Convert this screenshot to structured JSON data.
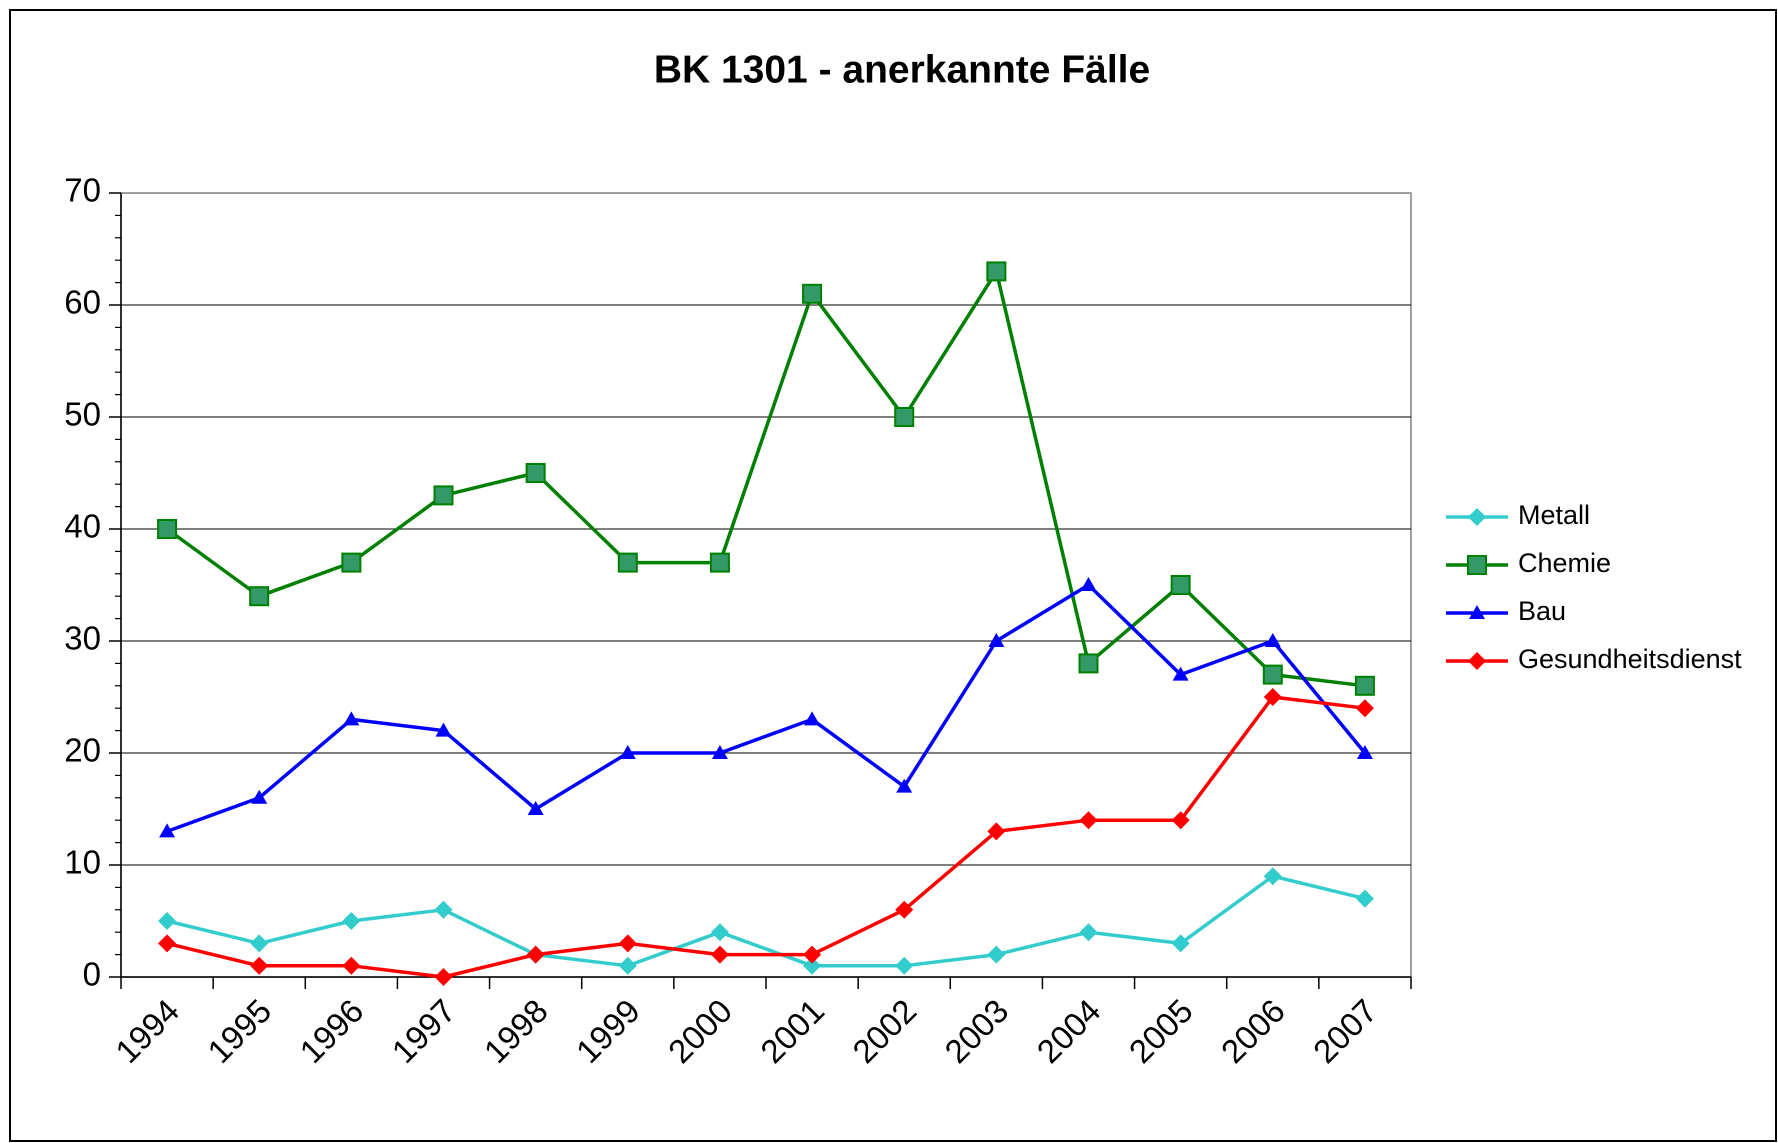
{
  "chart_data": {
    "type": "line",
    "title": "BK 1301 - anerkannte Fälle",
    "categories": [
      "1994",
      "1995",
      "1996",
      "1997",
      "1998",
      "1999",
      "2000",
      "2001",
      "2002",
      "2003",
      "2004",
      "2005",
      "2006",
      "2007"
    ],
    "series": [
      {
        "name": "Metall",
        "color": "#33cccc",
        "marker": "diamond",
        "values": [
          5,
          3,
          5,
          6,
          2,
          1,
          4,
          1,
          1,
          2,
          4,
          3,
          9,
          7
        ]
      },
      {
        "name": "Chemie",
        "color": "#008000",
        "marker": "square",
        "values": [
          40,
          34,
          37,
          43,
          45,
          37,
          37,
          61,
          50,
          63,
          28,
          35,
          27,
          26
        ]
      },
      {
        "name": "Bau",
        "color": "#0000ff",
        "marker": "triangle",
        "values": [
          13,
          16,
          23,
          22,
          15,
          20,
          20,
          23,
          17,
          30,
          35,
          27,
          30,
          20
        ]
      },
      {
        "name": "Gesundheitsdienst",
        "color": "#ff0000",
        "marker": "diamond",
        "values": [
          3,
          1,
          1,
          0,
          2,
          3,
          2,
          2,
          6,
          13,
          14,
          14,
          25,
          24
        ]
      }
    ],
    "ylim": [
      0,
      70
    ],
    "yticks": [
      0,
      10,
      20,
      30,
      40,
      50,
      60,
      70
    ],
    "grid": true,
    "legend": "right"
  }
}
